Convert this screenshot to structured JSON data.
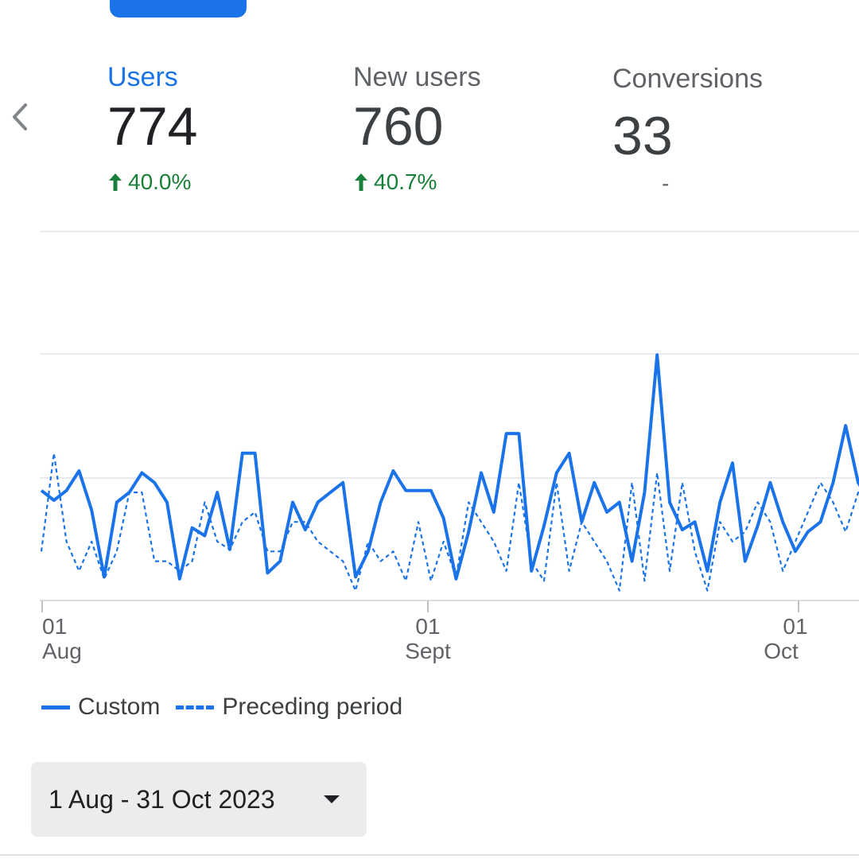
{
  "metrics": {
    "users": {
      "label": "Users",
      "value": "774",
      "delta": "40.0%"
    },
    "new_users": {
      "label": "New users",
      "value": "760",
      "delta": "40.7%"
    },
    "conversions": {
      "label": "Conversions",
      "value": "33",
      "delta": "-"
    }
  },
  "colors": {
    "accent": "#1a73e8",
    "positive": "#188038",
    "text_primary": "#202124",
    "text_secondary": "#5f6368"
  },
  "chart_data": {
    "type": "line",
    "x_ticks": [
      {
        "day": "01",
        "month": "Aug"
      },
      {
        "day": "01",
        "month": "Sept"
      },
      {
        "day": "01",
        "month": "Oct"
      }
    ],
    "grid": true,
    "series": [
      {
        "name": "Custom",
        "style": "solid",
        "values": [
          0.56,
          0.51,
          0.56,
          0.66,
          0.46,
          0.12,
          0.5,
          0.55,
          0.65,
          0.6,
          0.5,
          0.11,
          0.37,
          0.33,
          0.55,
          0.26,
          0.75,
          0.75,
          0.14,
          0.2,
          0.5,
          0.36,
          0.5,
          0.55,
          0.6,
          0.12,
          0.25,
          0.5,
          0.66,
          0.56,
          0.56,
          0.56,
          0.42,
          0.11,
          0.35,
          0.65,
          0.45,
          0.85,
          0.85,
          0.15,
          0.38,
          0.65,
          0.75,
          0.4,
          0.6,
          0.45,
          0.5,
          0.2,
          0.55,
          1.25,
          0.5,
          0.36,
          0.4,
          0.15,
          0.5,
          0.7,
          0.2,
          0.38,
          0.6,
          0.4,
          0.25,
          0.35,
          0.4,
          0.6,
          0.89,
          0.6,
          0.5
        ]
      },
      {
        "name": "Preceding period",
        "style": "dashed",
        "values": [
          0.25,
          0.75,
          0.3,
          0.15,
          0.3,
          0.11,
          0.25,
          0.55,
          0.55,
          0.2,
          0.2,
          0.15,
          0.2,
          0.5,
          0.3,
          0.26,
          0.4,
          0.45,
          0.25,
          0.25,
          0.4,
          0.4,
          0.3,
          0.25,
          0.2,
          0.05,
          0.3,
          0.2,
          0.25,
          0.1,
          0.4,
          0.1,
          0.3,
          0.12,
          0.5,
          0.4,
          0.3,
          0.15,
          0.6,
          0.2,
          0.1,
          0.6,
          0.15,
          0.4,
          0.3,
          0.2,
          0.05,
          0.6,
          0.1,
          0.65,
          0.15,
          0.6,
          0.25,
          0.05,
          0.4,
          0.3,
          0.35,
          0.5,
          0.4,
          0.15,
          0.3,
          0.45,
          0.6,
          0.5,
          0.35,
          0.55,
          0.5
        ]
      }
    ]
  },
  "legend": {
    "custom": "Custom",
    "preceding": "Preceding period"
  },
  "date_range": {
    "label": "1 Aug - 31 Oct 2023"
  }
}
